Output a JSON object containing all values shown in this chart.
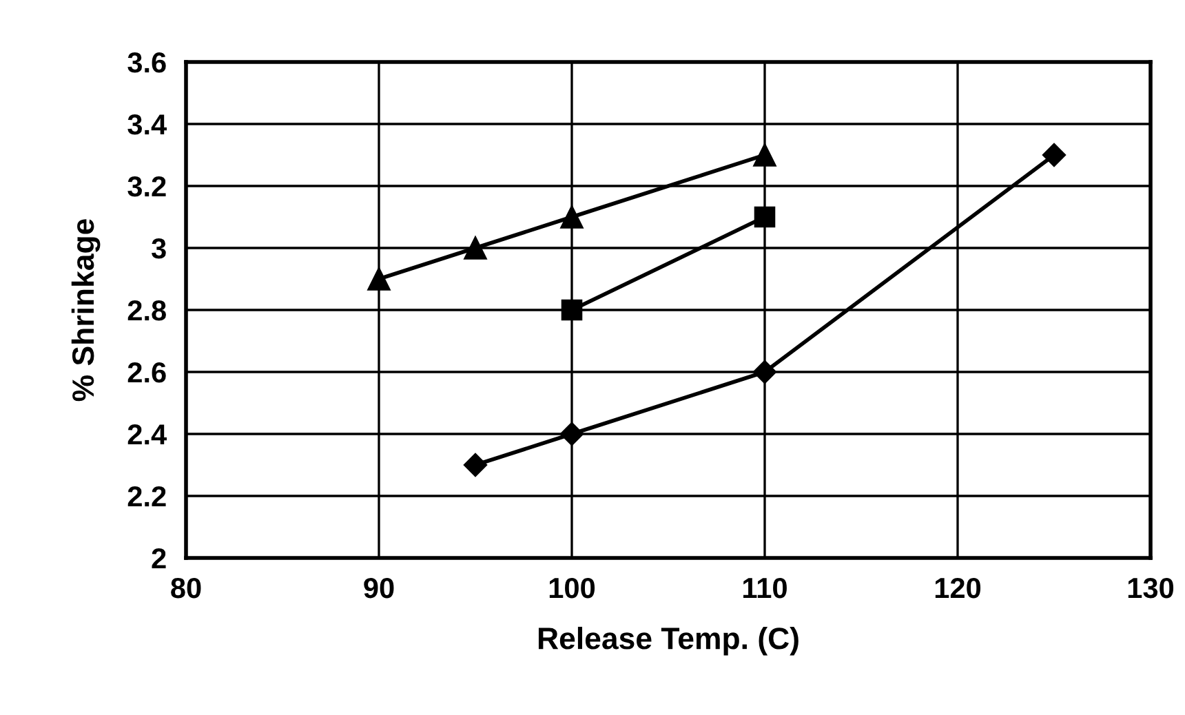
{
  "chart_data": {
    "type": "line",
    "xlabel": "Release Temp. (C)",
    "ylabel": "% Shrinkage",
    "xlim": [
      80,
      130
    ],
    "xticks": [
      80,
      90,
      100,
      110,
      120,
      130
    ],
    "ylim": [
      2,
      3.6
    ],
    "yticks": [
      2,
      2.2,
      2.4,
      2.6,
      2.8,
      3,
      3.2,
      3.4,
      3.6
    ],
    "grid": true,
    "line_style": "solid",
    "series": [
      {
        "color": "#000000",
        "marker": "triangle",
        "x": [
          90,
          95,
          100,
          110
        ],
        "values": [
          2.9,
          3.0,
          3.1,
          3.3
        ]
      },
      {
        "color": "#000000",
        "marker": "square",
        "x": [
          100,
          110
        ],
        "values": [
          2.8,
          3.1
        ]
      },
      {
        "color": "#000000",
        "marker": "diamond",
        "x": [
          95,
          100,
          110,
          125
        ],
        "values": [
          2.3,
          2.4,
          2.6,
          3.3
        ]
      }
    ]
  }
}
